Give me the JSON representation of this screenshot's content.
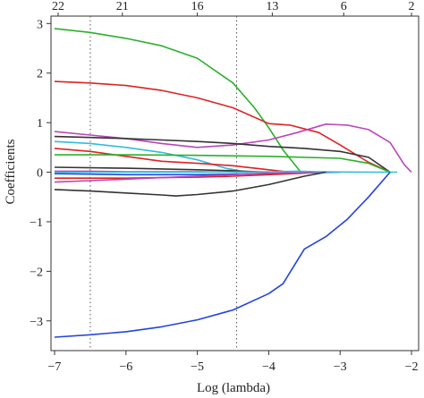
{
  "chart_data": {
    "type": "line",
    "xlabel": "Log (lambda)",
    "ylabel": "Coefficients",
    "xlim": [
      -7.05,
      -1.9
    ],
    "ylim": [
      -3.6,
      3.15
    ],
    "x_ticks": [
      -7,
      -6,
      -5,
      -4,
      -3,
      -2
    ],
    "x_tick_labels": [
      "−7",
      "−6",
      "−5",
      "−4",
      "−3",
      "−2"
    ],
    "y_ticks": [
      -3,
      -2,
      -1,
      0,
      1,
      2,
      3
    ],
    "y_tick_labels": [
      "−3",
      "−2",
      "−1",
      "0",
      "1",
      "2",
      "3"
    ],
    "top_axis": {
      "positions": [
        -6.95,
        -6.05,
        -5.0,
        -3.95,
        -2.95,
        -2.0
      ],
      "labels": [
        "22",
        "21",
        "16",
        "13",
        "6",
        "2"
      ]
    },
    "reference_lines_x": [
      -6.5,
      -4.45
    ],
    "grid": false,
    "series": [
      {
        "color": "#2ab02a",
        "x": [
          -7,
          -6.5,
          -6,
          -5.5,
          -5,
          -4.5,
          -4.2,
          -4.0,
          -3.8,
          -3.55
        ],
        "y": [
          2.9,
          2.82,
          2.7,
          2.55,
          2.3,
          1.8,
          1.3,
          0.9,
          0.45,
          0.0
        ]
      },
      {
        "color": "#dd2222",
        "x": [
          -7,
          -6.5,
          -6,
          -5.5,
          -5,
          -4.5,
          -4.0,
          -3.7,
          -3.3,
          -3.0,
          -2.6,
          -2.3
        ],
        "y": [
          1.83,
          1.8,
          1.75,
          1.65,
          1.5,
          1.3,
          0.98,
          0.95,
          0.8,
          0.55,
          0.2,
          0.0
        ]
      },
      {
        "color": "#bb44bb",
        "x": [
          -7,
          -6.5,
          -6,
          -5.5,
          -5,
          -4.5,
          -4.0,
          -3.6,
          -3.2,
          -2.9,
          -2.6,
          -2.3,
          -2.1,
          -2.0
        ],
        "y": [
          0.82,
          0.75,
          0.68,
          0.58,
          0.5,
          0.55,
          0.65,
          0.8,
          0.97,
          0.95,
          0.86,
          0.6,
          0.15,
          0.0
        ]
      },
      {
        "color": "#333333",
        "x": [
          -7,
          -6.5,
          -6,
          -5.5,
          -5,
          -4.5,
          -4.0,
          -3.5,
          -3.0,
          -2.6,
          -2.3
        ],
        "y": [
          0.72,
          0.7,
          0.68,
          0.65,
          0.62,
          0.58,
          0.52,
          0.48,
          0.42,
          0.3,
          0.0
        ]
      },
      {
        "color": "#33bbdd",
        "x": [
          -7,
          -6.5,
          -6,
          -5.5,
          -5,
          -4.6,
          -4.3
        ],
        "y": [
          0.62,
          0.58,
          0.5,
          0.4,
          0.25,
          0.08,
          0.0
        ]
      },
      {
        "color": "#dd2222",
        "x": [
          -7,
          -6.5,
          -6,
          -5.5,
          -5,
          -4.5,
          -4.0,
          -3.7
        ],
        "y": [
          0.48,
          0.42,
          0.32,
          0.22,
          0.18,
          0.13,
          0.05,
          0.0
        ]
      },
      {
        "color": "#2ab02a",
        "x": [
          -7,
          -6,
          -5,
          -4,
          -3,
          -2.6,
          -2.3
        ],
        "y": [
          0.35,
          0.35,
          0.34,
          0.32,
          0.28,
          0.18,
          0.0
        ]
      },
      {
        "color": "#333333",
        "x": [
          -7,
          -6,
          -5,
          -4.5,
          -4.0
        ],
        "y": [
          0.1,
          0.08,
          0.05,
          0.03,
          0.0
        ]
      },
      {
        "color": "#bb44bb",
        "x": [
          -7,
          -6.5,
          -6,
          -5.5,
          -5,
          -4.5,
          -4.0
        ],
        "y": [
          0.02,
          0.02,
          0.01,
          0.01,
          0.01,
          0.005,
          0.0
        ]
      },
      {
        "color": "#2244dd",
        "x": [
          -7,
          -6.5,
          -6,
          -5.5,
          -5,
          -4.5,
          -4.0,
          -3.5,
          -3.0
        ],
        "y": [
          -0.03,
          -0.04,
          -0.05,
          -0.05,
          -0.05,
          -0.04,
          -0.03,
          -0.01,
          0.0
        ]
      },
      {
        "color": "#dd2222",
        "x": [
          -7,
          -6.5,
          -6,
          -5.5,
          -5,
          -4.5,
          -4.0,
          -3.5,
          -3.2
        ],
        "y": [
          -0.12,
          -0.12,
          -0.12,
          -0.11,
          -0.1,
          -0.08,
          -0.05,
          -0.02,
          0.0
        ]
      },
      {
        "color": "#bb44bb",
        "x": [
          -7,
          -6.5,
          -6,
          -5.5,
          -5,
          -4.5,
          -4.0,
          -3.5,
          -3.2
        ],
        "y": [
          -0.2,
          -0.17,
          -0.14,
          -0.11,
          -0.08,
          -0.05,
          -0.02,
          -0.01,
          0.0
        ]
      },
      {
        "color": "#33bbdd",
        "x": [
          -7,
          -6,
          -5,
          -4.5,
          -4.0,
          -3.6,
          -3.3,
          -3.0,
          -2.5,
          -2.2
        ],
        "y": [
          0.0,
          0.0,
          0.0,
          0.005,
          0.01,
          0.02,
          0.01,
          0.005,
          0.0,
          0.0
        ]
      },
      {
        "color": "#333333",
        "x": [
          -7,
          -6.5,
          -6,
          -5.5,
          -5.3,
          -5,
          -4.5,
          -4.0,
          -3.5,
          -3.2
        ],
        "y": [
          -0.35,
          -0.38,
          -0.42,
          -0.46,
          -0.48,
          -0.45,
          -0.38,
          -0.25,
          -0.08,
          0.0
        ]
      },
      {
        "color": "#2244dd",
        "x": [
          -7,
          -6.5,
          -6,
          -5.5,
          -5,
          -4.5,
          -4.0,
          -3.8,
          -3.5,
          -3.2,
          -2.9,
          -2.6,
          -2.3
        ],
        "y": [
          -3.33,
          -3.28,
          -3.22,
          -3.12,
          -2.98,
          -2.78,
          -2.45,
          -2.25,
          -1.55,
          -1.3,
          -0.95,
          -0.5,
          0.0
        ]
      }
    ]
  }
}
